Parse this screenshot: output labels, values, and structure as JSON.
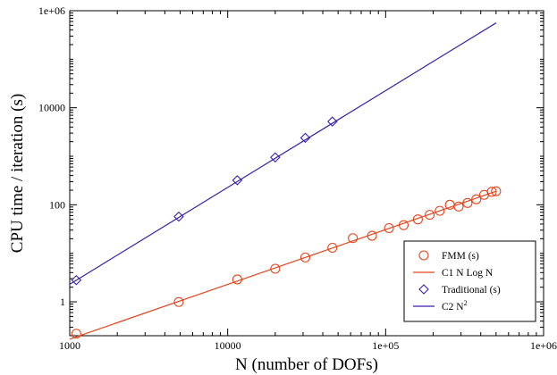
{
  "chart_data": {
    "type": "scatter",
    "xscale": "log",
    "yscale": "log",
    "xlim": [
      1000,
      1000000
    ],
    "ylim": [
      0.2,
      1000000
    ],
    "xlabel": "N (number of DOFs)",
    "ylabel": "CPU time / iteration (s)",
    "xticks": [
      {
        "value": 1000,
        "label": "1000"
      },
      {
        "value": 10000,
        "label": "10000"
      },
      {
        "value": 100000,
        "label": "1e+05"
      },
      {
        "value": 1000000,
        "label": "1e+06"
      }
    ],
    "yticks": [
      {
        "value": 1,
        "label": "1"
      },
      {
        "value": 100,
        "label": "100"
      },
      {
        "value": 10000,
        "label": "10000"
      },
      {
        "value": 1000000,
        "label": "1e+06"
      }
    ],
    "grid": false,
    "legend_position": "bottom-right",
    "colors": {
      "fmm": "#e8441c",
      "traditional": "#3a1fa8"
    },
    "series": [
      {
        "name": "FMM (s)",
        "kind": "markers",
        "marker": "circle",
        "color": "#e8441c",
        "x": [
          1100,
          4900,
          11500,
          20000,
          31000,
          46000,
          62000,
          82000,
          105000,
          130000,
          160000,
          190000,
          220000,
          255000,
          290000,
          330000,
          375000,
          420000,
          470000,
          500000
        ],
        "y": [
          0.22,
          0.99,
          2.9,
          4.8,
          8.2,
          13,
          20.5,
          23,
          33,
          38,
          50,
          62,
          75,
          100,
          92,
          109,
          130,
          160,
          185,
          190
        ]
      },
      {
        "name": "C1 N Log N",
        "kind": "line",
        "color": "#e8441c",
        "x": [
          1000,
          500000
        ],
        "y": [
          0.17,
          190
        ]
      },
      {
        "name": "Traditional (s)",
        "kind": "markers",
        "marker": "diamond",
        "color": "#3a1fa8",
        "x": [
          1100,
          4900,
          11500,
          20000,
          31000,
          46000
        ],
        "y": [
          2.8,
          57,
          320,
          950,
          2400,
          5200
        ]
      },
      {
        "name": "C2 N^2",
        "kind": "line",
        "color": "#3a1fa8",
        "x": [
          1000,
          500000
        ],
        "y": [
          2.3,
          560000
        ]
      }
    ],
    "legend": [
      {
        "label": "FMM (s)",
        "symbol": "circle",
        "color": "#e8441c"
      },
      {
        "label": "C1 N Log N",
        "symbol": "line",
        "color": "#e8441c"
      },
      {
        "label": "Traditional (s)",
        "symbol": "diamond",
        "color": "#3a1fa8"
      },
      {
        "label": "C2 N",
        "superscript": "2",
        "symbol": "line",
        "color": "#3a1fa8"
      }
    ]
  }
}
